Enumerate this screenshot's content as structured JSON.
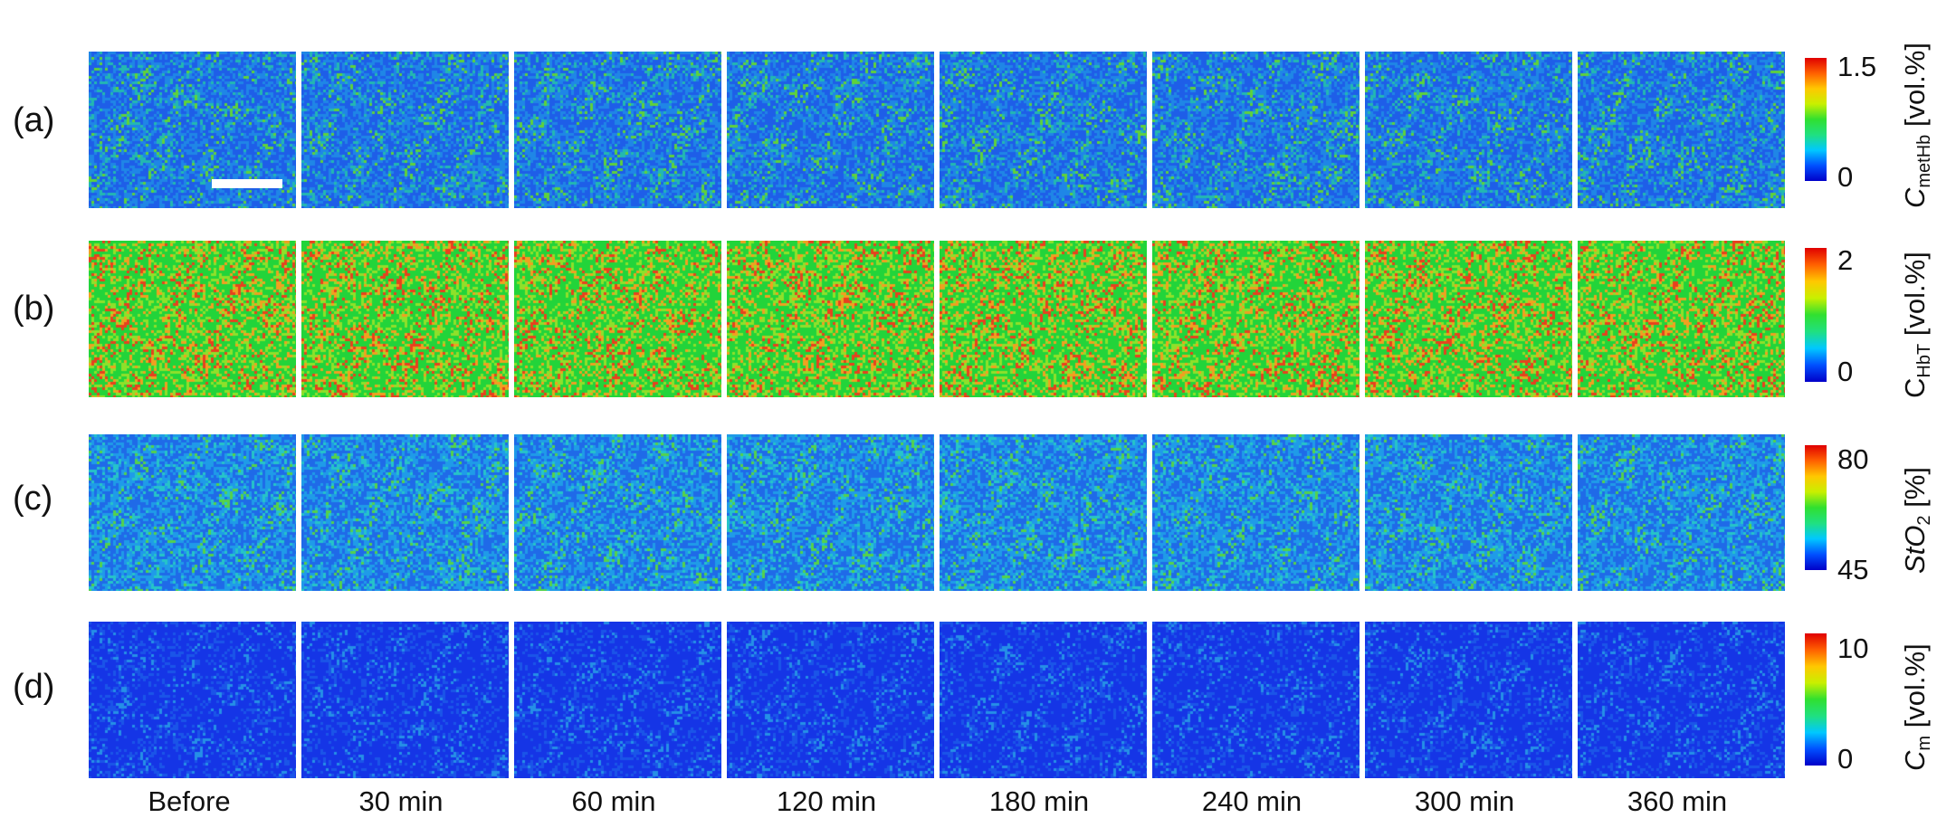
{
  "columns": [
    "Before",
    "30 min",
    "60 min",
    "120 min",
    "180 min",
    "240 min",
    "300 min",
    "360 min"
  ],
  "rows": [
    {
      "label": "(a)",
      "colorbar": {
        "max": "1.5",
        "min": "0",
        "symbol": "C",
        "sub": "metHb",
        "unit": " [vol.%]",
        "italic": true
      },
      "mix": [
        {
          "c": "#1e5ee8",
          "t": 0.45
        },
        {
          "c": "#1f86e6",
          "t": 0.35
        },
        {
          "c": "#23b8b0",
          "t": 0.15
        },
        {
          "c": "#5fd23a",
          "t": 0.05
        }
      ]
    },
    {
      "label": "(b)",
      "colorbar": {
        "max": "2",
        "min": "0",
        "symbol": "C",
        "sub": "HbT",
        "unit": " [vol.%]",
        "italic": false
      },
      "mix": [
        {
          "c": "#22d43a",
          "t": 0.55
        },
        {
          "c": "#8fe02a",
          "t": 0.2
        },
        {
          "c": "#f0a020",
          "t": 0.15
        },
        {
          "c": "#e8401e",
          "t": 0.1
        }
      ]
    },
    {
      "label": "(c)",
      "colorbar": {
        "max": "80",
        "min": "45",
        "symbol": "StO",
        "sub": "2",
        "unit": " [%]",
        "italic": true
      },
      "mix": [
        {
          "c": "#1f6ae8",
          "t": 0.45
        },
        {
          "c": "#1f9be8",
          "t": 0.35
        },
        {
          "c": "#26c4c8",
          "t": 0.15
        },
        {
          "c": "#55d24a",
          "t": 0.05
        }
      ]
    },
    {
      "label": "(d)",
      "colorbar": {
        "max": "10",
        "min": "0",
        "symbol": "C",
        "sub": "m",
        "unit": " [vol.%]",
        "italic": true
      },
      "mix": [
        {
          "c": "#1535e6",
          "t": 0.7
        },
        {
          "c": "#1a55e8",
          "t": 0.22
        },
        {
          "c": "#2590e6",
          "t": 0.08
        }
      ]
    }
  ],
  "colors": {
    "jet": [
      "#0000c8",
      "#0050ff",
      "#00c8ff",
      "#20e080",
      "#30e030",
      "#c8f000",
      "#ffc800",
      "#ff6000",
      "#e00000"
    ],
    "background": "#ffffff"
  }
}
